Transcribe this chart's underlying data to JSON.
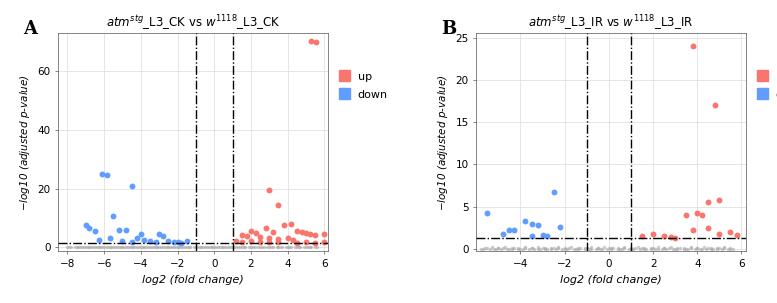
{
  "plot_A": {
    "title_parts": [
      "atm",
      "stg",
      "_L3_CK vs ",
      "w",
      "1118",
      "_L3_CK"
    ],
    "xlim": [
      -8.5,
      6.2
    ],
    "ylim": [
      -1.5,
      73
    ],
    "xticks": [
      -8,
      -6,
      -4,
      -2,
      0,
      2,
      4,
      6
    ],
    "yticks": [
      0,
      20,
      40,
      60
    ],
    "vline1": -1.0,
    "vline2": 1.0,
    "hline": 1.3,
    "gray_points": [
      [
        -8.0,
        0.05
      ],
      [
        -7.8,
        0.1
      ],
      [
        -7.5,
        0.05
      ],
      [
        -7.3,
        0.08
      ],
      [
        -7.0,
        0.12
      ],
      [
        -6.8,
        0.06
      ],
      [
        -6.5,
        0.09
      ],
      [
        -6.2,
        0.04
      ],
      [
        -6.0,
        0.07
      ],
      [
        -5.8,
        0.11
      ],
      [
        -5.5,
        0.05
      ],
      [
        -5.3,
        0.08
      ],
      [
        -5.0,
        0.06
      ],
      [
        -4.8,
        0.04
      ],
      [
        -4.5,
        0.09
      ],
      [
        -4.3,
        0.07
      ],
      [
        -4.0,
        0.05
      ],
      [
        -3.8,
        0.08
      ],
      [
        -3.5,
        0.06
      ],
      [
        -3.3,
        0.04
      ],
      [
        -3.0,
        0.07
      ],
      [
        -2.8,
        0.05
      ],
      [
        -2.5,
        0.09
      ],
      [
        -2.3,
        0.06
      ],
      [
        -2.0,
        0.08
      ],
      [
        -1.8,
        0.05
      ],
      [
        -1.5,
        0.07
      ],
      [
        -1.3,
        0.04
      ],
      [
        -1.0,
        0.06
      ],
      [
        -0.8,
        0.09
      ],
      [
        -0.5,
        0.05
      ],
      [
        -0.3,
        0.07
      ],
      [
        0.0,
        0.04
      ],
      [
        0.2,
        0.08
      ],
      [
        0.5,
        0.05
      ],
      [
        0.7,
        0.07
      ],
      [
        1.0,
        0.04
      ],
      [
        1.2,
        0.08
      ],
      [
        1.5,
        0.05
      ],
      [
        1.7,
        0.07
      ],
      [
        2.0,
        0.04
      ],
      [
        2.2,
        0.09
      ],
      [
        2.5,
        0.05
      ],
      [
        2.7,
        0.07
      ],
      [
        3.0,
        0.04
      ],
      [
        3.2,
        0.08
      ],
      [
        3.5,
        0.05
      ],
      [
        3.7,
        0.07
      ],
      [
        4.0,
        0.04
      ],
      [
        4.2,
        0.08
      ],
      [
        4.5,
        0.05
      ],
      [
        4.7,
        0.07
      ],
      [
        5.0,
        0.04
      ],
      [
        5.2,
        0.08
      ],
      [
        5.5,
        0.05
      ],
      [
        -7.9,
        0.0
      ],
      [
        -7.6,
        0.0
      ],
      [
        -7.2,
        0.0
      ],
      [
        -6.9,
        0.0
      ],
      [
        -6.6,
        0.0
      ],
      [
        -6.3,
        0.0
      ],
      [
        -6.1,
        0.0
      ],
      [
        -5.7,
        0.0
      ],
      [
        -5.4,
        0.0
      ],
      [
        -5.1,
        0.0
      ],
      [
        -4.7,
        0.0
      ],
      [
        -4.4,
        0.0
      ],
      [
        -4.1,
        0.0
      ],
      [
        -3.7,
        0.0
      ],
      [
        -3.4,
        0.0
      ],
      [
        -3.1,
        0.0
      ],
      [
        -2.7,
        0.0
      ],
      [
        -2.4,
        0.0
      ],
      [
        -2.1,
        0.0
      ],
      [
        -1.7,
        0.0
      ],
      [
        -1.4,
        0.0
      ],
      [
        -1.1,
        0.0
      ],
      [
        -0.7,
        0.0
      ],
      [
        -0.4,
        0.0
      ],
      [
        -0.1,
        0.0
      ],
      [
        0.1,
        0.0
      ],
      [
        0.4,
        0.0
      ],
      [
        0.6,
        0.0
      ],
      [
        0.9,
        0.0
      ],
      [
        1.1,
        0.0
      ],
      [
        1.4,
        0.0
      ],
      [
        1.6,
        0.0
      ],
      [
        1.9,
        0.0
      ],
      [
        2.1,
        0.0
      ],
      [
        2.4,
        0.0
      ],
      [
        2.6,
        0.0
      ],
      [
        2.9,
        0.0
      ],
      [
        3.1,
        0.0
      ],
      [
        3.4,
        0.0
      ],
      [
        3.6,
        0.0
      ],
      [
        3.9,
        0.0
      ],
      [
        4.1,
        0.0
      ],
      [
        4.4,
        0.0
      ],
      [
        4.6,
        0.0
      ],
      [
        4.9,
        0.0
      ],
      [
        5.1,
        0.0
      ],
      [
        5.3,
        0.0
      ],
      [
        5.6,
        0.0
      ],
      [
        -0.2,
        0.05
      ],
      [
        -0.6,
        0.08
      ],
      [
        -0.9,
        0.06
      ],
      [
        0.3,
        0.09
      ],
      [
        0.8,
        0.05
      ],
      [
        1.3,
        0.07
      ],
      [
        -1.6,
        0.05
      ],
      [
        -1.9,
        0.08
      ],
      [
        -2.2,
        0.06
      ],
      [
        -2.6,
        0.09
      ],
      [
        -2.9,
        0.05
      ],
      [
        -3.2,
        0.07
      ],
      [
        -3.6,
        0.05
      ],
      [
        -3.9,
        0.08
      ],
      [
        -4.2,
        0.06
      ],
      [
        -4.6,
        0.09
      ],
      [
        -4.9,
        0.05
      ],
      [
        -5.2,
        0.07
      ],
      [
        -5.6,
        0.05
      ],
      [
        -5.9,
        0.08
      ],
      [
        -6.4,
        0.06
      ],
      [
        -6.7,
        0.09
      ],
      [
        -7.1,
        0.05
      ],
      [
        -7.4,
        0.07
      ]
    ],
    "red_points": [
      [
        5.3,
        70.5
      ],
      [
        5.55,
        70.0
      ],
      [
        3.0,
        19.5
      ],
      [
        3.5,
        14.5
      ],
      [
        2.8,
        6.5
      ],
      [
        3.8,
        7.5
      ],
      [
        4.2,
        8.0
      ],
      [
        2.0,
        5.5
      ],
      [
        4.5,
        5.5
      ],
      [
        4.8,
        5.0
      ],
      [
        5.0,
        4.8
      ],
      [
        5.2,
        4.5
      ],
      [
        5.5,
        4.0
      ],
      [
        6.0,
        4.5
      ],
      [
        1.5,
        4.2
      ],
      [
        2.3,
        4.8
      ],
      [
        1.8,
        3.8
      ],
      [
        3.2,
        5.2
      ],
      [
        2.5,
        3.5
      ],
      [
        3.0,
        3.0
      ],
      [
        3.5,
        2.8
      ],
      [
        4.0,
        3.2
      ],
      [
        4.3,
        2.5
      ],
      [
        1.2,
        2.0
      ],
      [
        1.5,
        1.8
      ],
      [
        2.0,
        2.2
      ],
      [
        2.5,
        1.9
      ],
      [
        3.0,
        1.6
      ],
      [
        3.5,
        1.7
      ],
      [
        4.5,
        1.5
      ],
      [
        5.0,
        1.8
      ],
      [
        5.5,
        1.5
      ],
      [
        6.0,
        1.6
      ]
    ],
    "blue_points": [
      [
        -5.85,
        24.5
      ],
      [
        -6.1,
        25.0
      ],
      [
        -4.5,
        21.0
      ],
      [
        -7.0,
        7.5
      ],
      [
        -6.8,
        6.5
      ],
      [
        -6.5,
        5.5
      ],
      [
        -5.5,
        10.5
      ],
      [
        -5.2,
        5.8
      ],
      [
        -4.8,
        6.0
      ],
      [
        -4.2,
        3.0
      ],
      [
        -4.0,
        4.5
      ],
      [
        -3.8,
        2.5
      ],
      [
        -3.0,
        4.5
      ],
      [
        -2.8,
        3.8
      ],
      [
        -3.5,
        2.0
      ],
      [
        -2.5,
        2.2
      ],
      [
        -2.0,
        1.8
      ],
      [
        -1.8,
        1.5
      ],
      [
        -5.0,
        2.2
      ],
      [
        -4.5,
        1.9
      ],
      [
        -3.2,
        1.6
      ],
      [
        -2.2,
        1.7
      ],
      [
        -1.5,
        2.0
      ],
      [
        -6.3,
        2.5
      ],
      [
        -5.7,
        3.0
      ]
    ]
  },
  "plot_B": {
    "title_parts": [
      "atm",
      "stg",
      "_L3_IR vs ",
      "w",
      "1118",
      "_L3_IR"
    ],
    "xlim": [
      -6.0,
      6.2
    ],
    "ylim": [
      -0.3,
      25.5
    ],
    "xticks": [
      -4,
      -2,
      0,
      2,
      4,
      6
    ],
    "yticks": [
      0,
      5,
      10,
      15,
      20,
      25
    ],
    "vline1": -1.0,
    "vline2": 1.0,
    "hline": 1.3,
    "gray_points": [
      [
        -5.8,
        0.05
      ],
      [
        -5.5,
        0.08
      ],
      [
        -5.2,
        0.04
      ],
      [
        -5.0,
        0.07
      ],
      [
        -4.8,
        0.1
      ],
      [
        -4.5,
        0.05
      ],
      [
        -4.3,
        0.08
      ],
      [
        -4.0,
        0.04
      ],
      [
        -3.8,
        0.07
      ],
      [
        -3.5,
        0.1
      ],
      [
        -3.2,
        0.05
      ],
      [
        -3.0,
        0.08
      ],
      [
        -2.8,
        0.04
      ],
      [
        -2.5,
        0.07
      ],
      [
        -2.3,
        0.1
      ],
      [
        -2.0,
        0.05
      ],
      [
        -1.8,
        0.08
      ],
      [
        -1.5,
        0.04
      ],
      [
        -1.3,
        0.07
      ],
      [
        -1.0,
        0.1
      ],
      [
        -0.8,
        0.05
      ],
      [
        -0.5,
        0.08
      ],
      [
        -0.3,
        0.04
      ],
      [
        0.0,
        0.07
      ],
      [
        0.2,
        0.1
      ],
      [
        0.5,
        0.05
      ],
      [
        0.7,
        0.08
      ],
      [
        1.0,
        0.04
      ],
      [
        1.2,
        0.07
      ],
      [
        1.5,
        0.1
      ],
      [
        1.7,
        0.05
      ],
      [
        2.0,
        0.08
      ],
      [
        2.2,
        0.04
      ],
      [
        2.5,
        0.07
      ],
      [
        2.7,
        0.1
      ],
      [
        3.0,
        0.05
      ],
      [
        3.2,
        0.08
      ],
      [
        3.5,
        0.04
      ],
      [
        3.7,
        0.07
      ],
      [
        4.0,
        0.1
      ],
      [
        4.2,
        0.05
      ],
      [
        4.5,
        0.08
      ],
      [
        4.7,
        0.04
      ],
      [
        5.0,
        0.07
      ],
      [
        5.2,
        0.1
      ],
      [
        5.5,
        0.05
      ],
      [
        -5.7,
        0.0
      ],
      [
        -5.4,
        0.0
      ],
      [
        -5.1,
        0.0
      ],
      [
        -4.9,
        0.0
      ],
      [
        -4.6,
        0.0
      ],
      [
        -4.4,
        0.0
      ],
      [
        -4.1,
        0.0
      ],
      [
        -3.9,
        0.0
      ],
      [
        -3.6,
        0.0
      ],
      [
        -3.4,
        0.0
      ],
      [
        -3.1,
        0.0
      ],
      [
        -2.9,
        0.0
      ],
      [
        -2.6,
        0.0
      ],
      [
        -2.4,
        0.0
      ],
      [
        -2.1,
        0.0
      ],
      [
        -1.9,
        0.0
      ],
      [
        -1.6,
        0.0
      ],
      [
        -1.4,
        0.0
      ],
      [
        -1.1,
        0.0
      ],
      [
        -0.9,
        0.0
      ],
      [
        -0.6,
        0.0
      ],
      [
        -0.4,
        0.0
      ],
      [
        -0.1,
        0.0
      ],
      [
        0.1,
        0.0
      ],
      [
        0.4,
        0.0
      ],
      [
        0.6,
        0.0
      ],
      [
        0.9,
        0.0
      ],
      [
        1.1,
        0.0
      ],
      [
        1.4,
        0.0
      ],
      [
        1.6,
        0.0
      ],
      [
        1.9,
        0.0
      ],
      [
        2.1,
        0.0
      ],
      [
        2.4,
        0.0
      ],
      [
        2.6,
        0.0
      ],
      [
        2.9,
        0.0
      ],
      [
        3.1,
        0.0
      ],
      [
        3.4,
        0.0
      ],
      [
        3.6,
        0.0
      ],
      [
        3.9,
        0.0
      ],
      [
        4.1,
        0.0
      ],
      [
        4.4,
        0.0
      ],
      [
        4.6,
        0.0
      ],
      [
        4.9,
        0.0
      ],
      [
        5.1,
        0.0
      ],
      [
        5.4,
        0.0
      ],
      [
        5.6,
        0.0
      ],
      [
        -5.6,
        0.15
      ],
      [
        -5.3,
        0.2
      ],
      [
        -5.0,
        0.12
      ],
      [
        -4.7,
        0.18
      ],
      [
        -4.4,
        0.1
      ],
      [
        -4.1,
        0.15
      ],
      [
        -3.8,
        0.2
      ],
      [
        -3.5,
        0.12
      ],
      [
        -3.2,
        0.18
      ],
      [
        -2.9,
        0.1
      ],
      [
        -2.6,
        0.15
      ],
      [
        -2.3,
        0.2
      ],
      [
        -2.0,
        0.12
      ],
      [
        -1.7,
        0.18
      ],
      [
        -1.4,
        0.1
      ],
      [
        -1.1,
        0.15
      ],
      [
        -0.8,
        0.2
      ],
      [
        -0.5,
        0.12
      ],
      [
        -0.2,
        0.18
      ],
      [
        0.1,
        0.1
      ],
      [
        0.4,
        0.15
      ],
      [
        0.7,
        0.2
      ],
      [
        1.0,
        0.12
      ],
      [
        1.3,
        0.18
      ],
      [
        1.6,
        0.1
      ],
      [
        1.9,
        0.15
      ],
      [
        2.2,
        0.2
      ],
      [
        2.5,
        0.12
      ],
      [
        2.8,
        0.18
      ],
      [
        3.1,
        0.1
      ],
      [
        3.4,
        0.15
      ],
      [
        3.7,
        0.2
      ],
      [
        4.0,
        0.12
      ],
      [
        4.3,
        0.18
      ],
      [
        4.6,
        0.1
      ],
      [
        4.9,
        0.15
      ],
      [
        5.2,
        0.2
      ],
      [
        5.5,
        0.12
      ]
    ],
    "red_points": [
      [
        3.8,
        24.0
      ],
      [
        4.8,
        17.0
      ],
      [
        4.5,
        5.5
      ],
      [
        5.0,
        5.8
      ],
      [
        3.5,
        4.0
      ],
      [
        4.0,
        4.2
      ],
      [
        4.2,
        4.0
      ],
      [
        3.8,
        2.2
      ],
      [
        4.5,
        2.5
      ],
      [
        5.0,
        1.8
      ],
      [
        5.5,
        2.0
      ],
      [
        5.8,
        1.7
      ],
      [
        2.0,
        1.8
      ],
      [
        2.5,
        1.5
      ],
      [
        3.0,
        1.3
      ],
      [
        1.5,
        1.5
      ],
      [
        2.8,
        1.4
      ]
    ],
    "blue_points": [
      [
        -5.5,
        4.2
      ],
      [
        -2.5,
        6.7
      ],
      [
        -3.8,
        3.3
      ],
      [
        -3.5,
        3.0
      ],
      [
        -3.2,
        2.8
      ],
      [
        -4.5,
        2.3
      ],
      [
        -4.3,
        2.2
      ],
      [
        -2.2,
        2.6
      ],
      [
        -3.0,
        1.6
      ],
      [
        -2.8,
        1.5
      ],
      [
        -4.8,
        1.8
      ],
      [
        -3.5,
        1.5
      ]
    ]
  },
  "colors": {
    "red": "#F8766D",
    "blue": "#619CFF",
    "gray": "#aaaaaa",
    "background": "#ffffff",
    "grid": "#e0e0e0"
  },
  "legend_up_label": "up",
  "legend_down_label": "down"
}
